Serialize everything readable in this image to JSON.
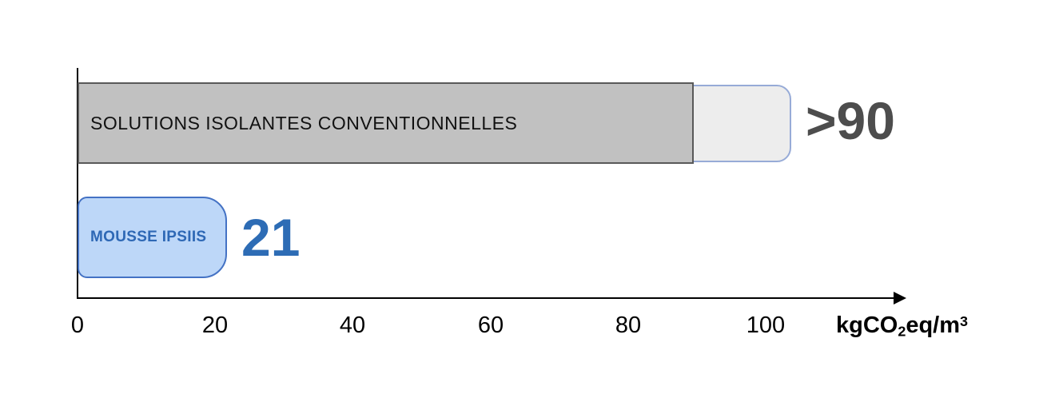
{
  "chart_data": {
    "type": "bar",
    "orientation": "horizontal",
    "title": "",
    "categories": [
      "SOLUTIONS ISOLANTES CONVENTIONNELLES",
      "MOUSSE IPSIIS"
    ],
    "values": [
      90,
      21
    ],
    "value_labels": [
      ">90",
      "21"
    ],
    "notes": "conventional bar has a faded extension suggesting values above 90, reaching about 104 on the axis",
    "extension_end_value": 104,
    "xlabel": "kgCO2eq/m3",
    "x_ticks": [
      0,
      20,
      40,
      60,
      80,
      100
    ],
    "xlim": [
      0,
      120
    ],
    "grid": false,
    "legend": false,
    "colors": {
      "conventional_fill": "#C1C1C1",
      "conventional_border": "#595959",
      "extension_fill": "#EDEDED",
      "extension_border": "#97ABD7",
      "ipsiis_fill": "#BDD7F8",
      "ipsiis_border": "#4472C4",
      "ipsiis_text": "#2E68B5",
      "value_conventional_text": "#4D4D4D",
      "value_ipsiis_text": "#2D6CB5",
      "axis": "#000000"
    }
  },
  "bars": {
    "conventional": {
      "label": "SOLUTIONS ISOLANTES CONVENTIONNELLES",
      "value_label": ">90"
    },
    "ipsiis": {
      "label": "MOUSSE IPSIIS",
      "value_label": "21"
    }
  },
  "axis": {
    "ticks": [
      "0",
      "20",
      "40",
      "60",
      "80",
      "100"
    ],
    "label_parts": {
      "p1": "kgCO",
      "sub": "2",
      "p2": "eq/m",
      "sup": "3"
    }
  }
}
